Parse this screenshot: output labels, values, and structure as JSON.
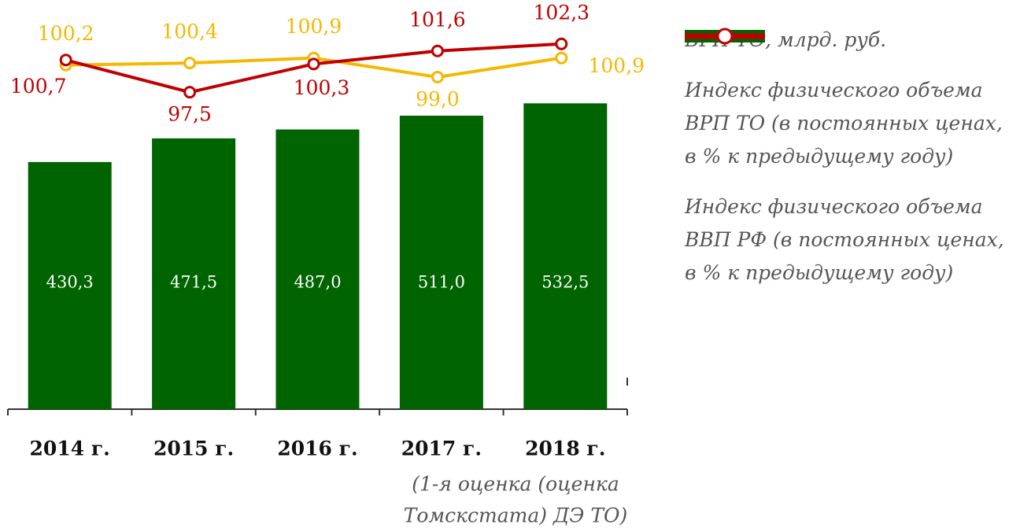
{
  "chart_data": {
    "type": "bar_line",
    "categories": [
      "2014 г.",
      "2015 г.",
      "2016 г.",
      "2017 г.",
      "2018 г."
    ],
    "annotation": [
      "(1-я оценка (оценка",
      "Томскстата) ДЭ ТО)"
    ],
    "ylim": [
      0,
      685
    ],
    "y2lim": [
      66,
      105.1
    ],
    "series": [
      {
        "name": "ВРП ТО, млрд. руб.",
        "type": "bar",
        "color": "#006400",
        "values": [
          430.3,
          471.5,
          487.0,
          511.0,
          532.5
        ],
        "value_labels": [
          "430,3",
          "471,5",
          "487,0",
          "511,0",
          "532,5"
        ]
      },
      {
        "name": "Индекс физического объема ВРП ТО (в постоянных ценах, в % к предыдущему году)",
        "type": "line",
        "axis": "y2",
        "color": "#f5b800",
        "values": [
          100.2,
          100.4,
          100.9,
          99.0,
          100.9
        ],
        "value_labels": [
          "100,2",
          "100,4",
          "100,9",
          "99,0",
          "100,9"
        ]
      },
      {
        "name": "Индекс физического объема ВВП РФ (в постоянных ценах, в % к предыдущему году)",
        "type": "line",
        "axis": "y2",
        "color": "#c00000",
        "values": [
          100.7,
          97.5,
          100.3,
          101.6,
          102.3
        ],
        "value_labels": [
          "100,7",
          "97,5",
          "100,3",
          "101,6",
          "102,3"
        ]
      }
    ]
  }
}
